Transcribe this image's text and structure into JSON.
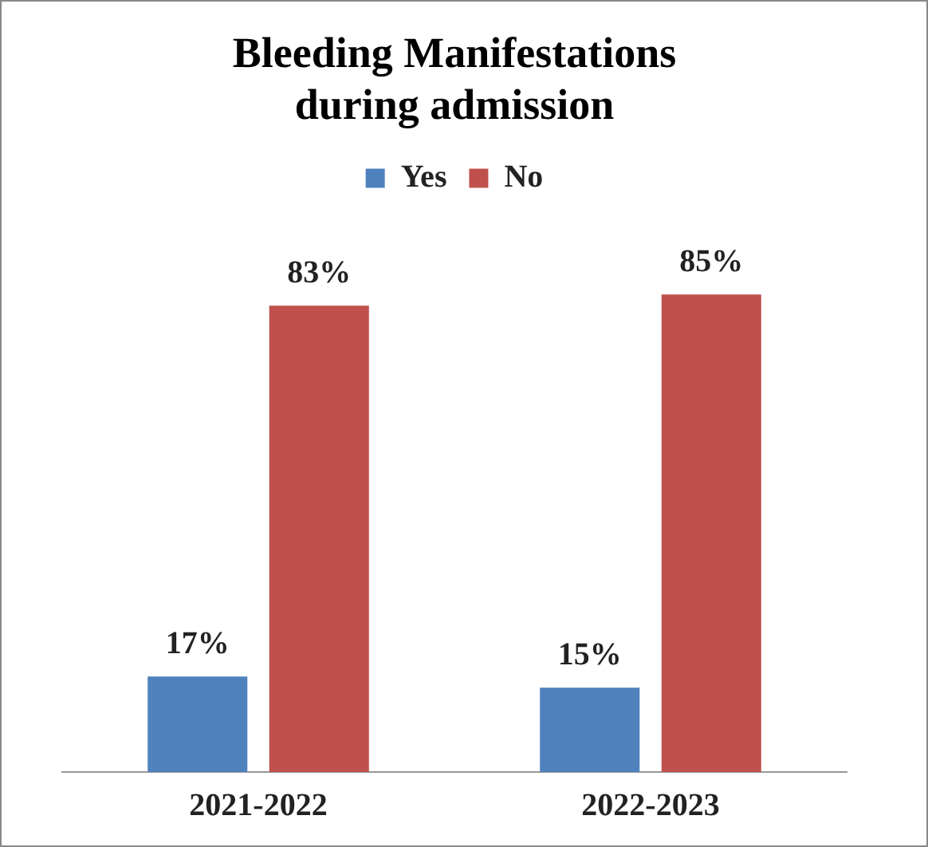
{
  "chart_data": {
    "type": "bar",
    "title": "Bleeding Manifestations during admission",
    "categories": [
      "2021-2022",
      "2022-2023"
    ],
    "series": [
      {
        "name": "Yes",
        "color": "#4f81bd",
        "values": [
          17,
          15
        ],
        "value_labels": [
          "17%",
          "15%"
        ]
      },
      {
        "name": "No",
        "color": "#c0504d",
        "values": [
          83,
          85
        ],
        "value_labels": [
          "83%",
          "85%"
        ]
      }
    ],
    "legend": "top",
    "grid": false
  }
}
